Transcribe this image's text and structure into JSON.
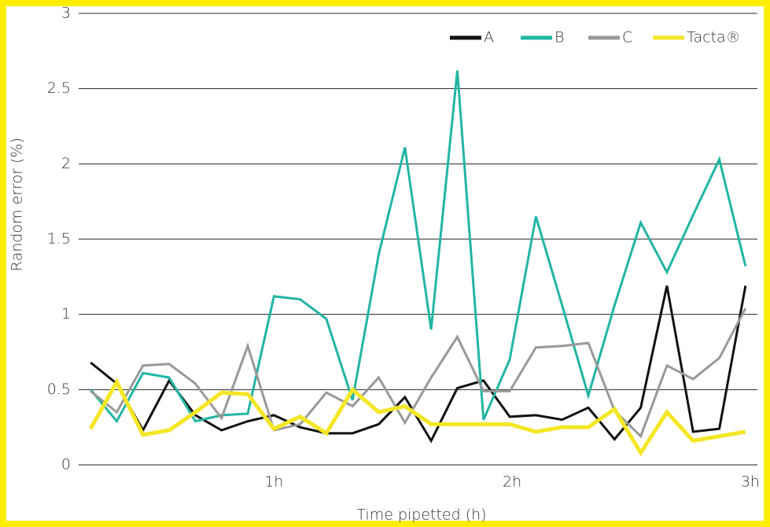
{
  "chart_data": {
    "type": "line",
    "xlabel": "Time pipetted (h)",
    "ylabel": "Random error (%)",
    "x": [
      0.23,
      0.34,
      0.45,
      0.56,
      0.67,
      0.78,
      0.89,
      1.0,
      1.11,
      1.22,
      1.33,
      1.44,
      1.55,
      1.66,
      1.77,
      1.88,
      1.99,
      2.1,
      2.21,
      2.32,
      2.43,
      2.54,
      2.65,
      2.76,
      2.87,
      2.98
    ],
    "series": [
      {
        "name": "A",
        "color": "#111111",
        "values": [
          0.68,
          0.54,
          0.23,
          0.56,
          0.33,
          0.23,
          0.29,
          0.33,
          0.25,
          0.21,
          0.21,
          0.27,
          0.45,
          0.16,
          0.51,
          0.56,
          0.32,
          0.33,
          0.3,
          0.38,
          0.17,
          0.38,
          1.19,
          0.22,
          0.24,
          1.19
        ]
      },
      {
        "name": "B",
        "color": "#22b5a3",
        "values": [
          0.5,
          0.29,
          0.61,
          0.58,
          0.29,
          0.33,
          0.34,
          1.12,
          1.1,
          0.97,
          0.43,
          1.4,
          2.11,
          0.9,
          2.62,
          0.3,
          0.7,
          1.65,
          1.06,
          0.46,
          1.06,
          1.61,
          1.28,
          1.66,
          2.03,
          1.32
        ]
      },
      {
        "name": "C",
        "color": "#999999",
        "values": [
          0.49,
          0.35,
          0.66,
          0.67,
          0.54,
          0.31,
          0.79,
          0.23,
          0.27,
          0.48,
          0.39,
          0.58,
          0.28,
          0.58,
          0.85,
          0.49,
          0.49,
          0.78,
          0.79,
          0.81,
          0.36,
          0.19,
          0.66,
          0.57,
          0.71,
          1.04
        ]
      },
      {
        "name": "Tacta®",
        "color": "#f5e625",
        "values": [
          0.24,
          0.55,
          0.2,
          0.23,
          0.35,
          0.48,
          0.47,
          0.24,
          0.32,
          0.21,
          0.5,
          0.35,
          0.39,
          0.27,
          0.27,
          0.27,
          0.27,
          0.22,
          0.25,
          0.25,
          0.37,
          0.08,
          0.35,
          0.16,
          0.19,
          0.22
        ]
      }
    ],
    "xlim": [
      0.18,
      3.03
    ],
    "xticks": [
      {
        "value": 1,
        "label": "1h"
      },
      {
        "value": 2,
        "label": "2h"
      },
      {
        "value": 3,
        "label": "3h"
      }
    ],
    "ylim": [
      0,
      3
    ],
    "yticks": [
      0,
      0.5,
      1,
      1.5,
      2,
      2.5,
      3
    ],
    "grid": true,
    "legend": "top-right"
  }
}
